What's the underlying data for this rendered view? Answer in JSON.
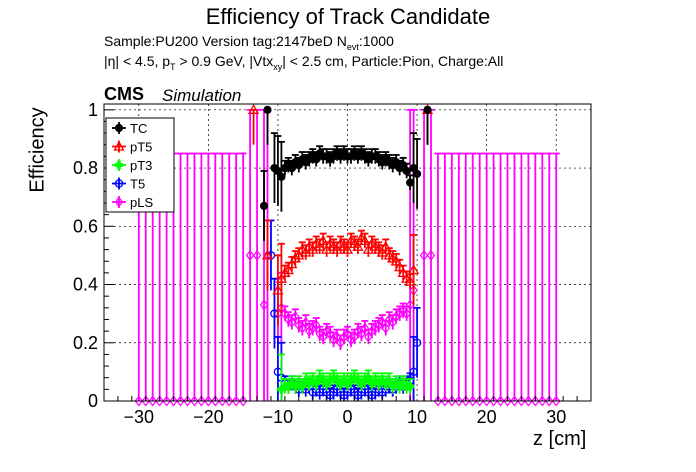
{
  "header": {
    "title": "Efficiency of Track Candidate",
    "sample": "Sample:PU200   Version tag:2147beD  N",
    "nevt_sub": "evt",
    "nevt_val": ":1000",
    "cuts_a": "|η| < 4.5, p",
    "cuts_sub1": "T",
    "cuts_b": " > 0.9 GeV, |Vtx",
    "cuts_sub2": "xy",
    "cuts_c": "| < 2.5 cm, Particle:Pion, Charge:All",
    "cms": "CMS",
    "simulation": "Simulation"
  },
  "colors": {
    "TC": "#000000",
    "pT5": "#ff0000",
    "pT3": "#00ff00",
    "T5": "#0000ff",
    "pLS": "#ff00ff"
  },
  "chart_data": {
    "type": "scatter",
    "xlabel": "z [cm]",
    "ylabel": "Efficiency",
    "xlim": [
      -35,
      35
    ],
    "ylim": [
      0,
      1.02
    ],
    "xticks": [
      "−30",
      "−20",
      "−10",
      "0",
      "10",
      "20",
      "30"
    ],
    "xtick_values": [
      -30,
      -20,
      -10,
      0,
      10,
      20,
      30
    ],
    "yticks": [
      "0",
      "0.2",
      "0.4",
      "0.6",
      "0.8",
      "1"
    ],
    "ytick_values": [
      0,
      0.2,
      0.4,
      0.6,
      0.8,
      1
    ],
    "grid": true,
    "legend_position": "top-left",
    "legend": [
      "TC",
      "pT5",
      "pT3",
      "T5",
      "pLS"
    ],
    "series": [
      {
        "name": "TC",
        "marker": "circle-filled",
        "x": [
          -12,
          -11.5,
          -10.5,
          -10,
          -9.5,
          -9,
          -8.5,
          -8,
          -7.5,
          -7,
          -6.5,
          -6,
          -5.5,
          -5,
          -4.5,
          -4,
          -3.5,
          -3,
          -2.5,
          -2,
          -1.5,
          -1,
          -0.5,
          0,
          0.5,
          1,
          1.5,
          2,
          2.5,
          3,
          3.5,
          4,
          4.5,
          5,
          5.5,
          6,
          6.5,
          7,
          7.5,
          8,
          8.5,
          9,
          9.5,
          10,
          11.5
        ],
        "y": [
          0.67,
          1.0,
          0.8,
          0.79,
          0.77,
          0.8,
          0.81,
          0.8,
          0.82,
          0.81,
          0.83,
          0.82,
          0.83,
          0.84,
          0.83,
          0.85,
          0.84,
          0.84,
          0.83,
          0.84,
          0.85,
          0.84,
          0.85,
          0.84,
          0.84,
          0.85,
          0.84,
          0.85,
          0.84,
          0.83,
          0.84,
          0.84,
          0.83,
          0.82,
          0.83,
          0.82,
          0.81,
          0.82,
          0.8,
          0.81,
          0.79,
          0.75,
          0.8,
          0.78,
          1.0
        ]
      },
      {
        "name": "pT5",
        "marker": "triangle-open",
        "x": [
          -13.5,
          -11.5,
          -10,
          -9.5,
          -9,
          -8.5,
          -8,
          -7.5,
          -7,
          -6.5,
          -6,
          -5.5,
          -5,
          -4.5,
          -4,
          -3.5,
          -3,
          -2.5,
          -2,
          -1.5,
          -1,
          -0.5,
          0,
          0.5,
          1,
          1.5,
          2,
          2.5,
          3,
          3.5,
          4,
          4.5,
          5,
          5.5,
          6,
          6.5,
          7,
          7.5,
          8,
          8.5,
          9,
          9.5,
          11.5
        ],
        "y": [
          1.0,
          0.5,
          0.38,
          0.42,
          0.44,
          0.45,
          0.47,
          0.49,
          0.5,
          0.52,
          0.51,
          0.53,
          0.52,
          0.54,
          0.53,
          0.55,
          0.52,
          0.54,
          0.53,
          0.52,
          0.54,
          0.53,
          0.52,
          0.55,
          0.54,
          0.53,
          0.56,
          0.55,
          0.52,
          0.54,
          0.53,
          0.52,
          0.51,
          0.53,
          0.5,
          0.49,
          0.48,
          0.46,
          0.44,
          0.42,
          0.41,
          0.45,
          1.0
        ]
      },
      {
        "name": "pT3",
        "marker": "cross",
        "x": [
          -9.5,
          -9,
          -8.5,
          -8,
          -7.5,
          -7,
          -6.5,
          -6,
          -5.5,
          -5,
          -4.5,
          -4,
          -3.5,
          -3,
          -2.5,
          -2,
          -1.5,
          -1,
          -0.5,
          0,
          0.5,
          1,
          1.5,
          2,
          2.5,
          3,
          3.5,
          4,
          4.5,
          5,
          5.5,
          6,
          6.5,
          7,
          7.5,
          8,
          8.5,
          9
        ],
        "y": [
          0.04,
          0.05,
          0.05,
          0.06,
          0.05,
          0.06,
          0.05,
          0.07,
          0.06,
          0.07,
          0.06,
          0.08,
          0.07,
          0.06,
          0.07,
          0.08,
          0.07,
          0.06,
          0.07,
          0.06,
          0.07,
          0.08,
          0.07,
          0.06,
          0.07,
          0.08,
          0.06,
          0.07,
          0.06,
          0.07,
          0.06,
          0.07,
          0.05,
          0.06,
          0.05,
          0.06,
          0.05,
          0.05
        ]
      },
      {
        "name": "T5",
        "marker": "circle-open",
        "x": [
          -11,
          -10.5,
          -10,
          -9.5,
          -9,
          -8.5,
          -8,
          -7.5,
          -7,
          -6.5,
          -6,
          -5.5,
          -5,
          -4.5,
          -4,
          -3.5,
          -3,
          -2.5,
          -2,
          -1.5,
          -1,
          -0.5,
          0,
          0.5,
          1,
          1.5,
          2,
          2.5,
          3,
          3.5,
          4,
          4.5,
          5,
          5.5,
          6,
          6.5,
          7,
          7.5,
          8,
          8.5,
          9,
          9.5,
          10
        ],
        "y": [
          0.5,
          0.3,
          0.1,
          0.08,
          0.06,
          0.05,
          0.06,
          0.05,
          0.04,
          0.05,
          0.04,
          0.05,
          0.03,
          0.04,
          0.03,
          0.04,
          0.03,
          0.02,
          0.03,
          0.04,
          0.03,
          0.02,
          0.03,
          0.04,
          0.03,
          0.02,
          0.03,
          0.04,
          0.03,
          0.02,
          0.03,
          0.04,
          0.03,
          0.04,
          0.05,
          0.04,
          0.05,
          0.06,
          0.05,
          0.06,
          0.07,
          0.1,
          0.2
        ]
      },
      {
        "name": "pLS",
        "marker": "diamond-open",
        "x": [
          -30,
          -29,
          -28,
          -27,
          -26,
          -25,
          -24,
          -23,
          -22,
          -21,
          -20,
          -19,
          -18,
          -17,
          -16,
          -15,
          -14,
          -13,
          -12,
          -11.5,
          -10,
          -9.5,
          -9,
          -8.5,
          -8,
          -7.5,
          -7,
          -6.5,
          -6,
          -5.5,
          -5,
          -4.5,
          -4,
          -3.5,
          -3,
          -2.5,
          -2,
          -1.5,
          -1,
          -0.5,
          0,
          0.5,
          1,
          1.5,
          2,
          2.5,
          3,
          3.5,
          4,
          4.5,
          5,
          5.5,
          6,
          6.5,
          7,
          7.5,
          8,
          8.5,
          9,
          9.5,
          11,
          12,
          13,
          14,
          15,
          16,
          17,
          18,
          19,
          20,
          21,
          22,
          23,
          24,
          25,
          26,
          27,
          28,
          29,
          30
        ],
        "y": [
          0,
          0,
          0,
          0,
          0,
          0,
          0,
          0,
          0,
          0,
          0,
          0,
          0,
          0,
          0,
          0,
          0.5,
          0.5,
          0.33,
          0.5,
          0.3,
          0.32,
          0.3,
          0.28,
          0.27,
          0.29,
          0.26,
          0.25,
          0.27,
          0.24,
          0.25,
          0.26,
          0.23,
          0.22,
          0.24,
          0.23,
          0.21,
          0.22,
          0.2,
          0.22,
          0.23,
          0.21,
          0.22,
          0.24,
          0.23,
          0.25,
          0.22,
          0.24,
          0.25,
          0.26,
          0.27,
          0.25,
          0.28,
          0.27,
          0.29,
          0.3,
          0.31,
          0.3,
          0.33,
          0.38,
          0.5,
          0.5,
          0,
          0,
          0,
          0,
          0,
          0,
          0,
          0,
          0,
          0,
          0,
          0,
          0,
          0,
          0,
          0,
          0,
          0
        ]
      }
    ]
  }
}
